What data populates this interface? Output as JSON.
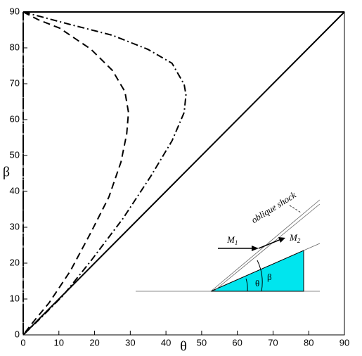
{
  "chart_data": {
    "type": "line",
    "x_label": "θ",
    "y_label": "β",
    "xlim": [
      0,
      90
    ],
    "ylim": [
      0,
      90
    ],
    "xticks": [
      0,
      10,
      20,
      30,
      40,
      50,
      60,
      70,
      80,
      90
    ],
    "yticks": [
      0,
      10,
      20,
      30,
      40,
      50,
      60,
      70,
      80,
      90
    ],
    "series": [
      {
        "color": "#000000",
        "dash": "solid",
        "x": [
          0,
          90,
          null,
          0,
          90
        ],
        "y": [
          0,
          90,
          null,
          90,
          90
        ]
      },
      {
        "color": "#000000",
        "dash": "dashed",
        "x": [
          0,
          4.3,
          10.2,
          19,
          25,
          28.5,
          29.5,
          29,
          27.4,
          24,
          19,
          13.2,
          7.3,
          2.4,
          0,
          0
        ],
        "y": [
          90,
          87.8,
          85.5,
          79.6,
          73.7,
          67.8,
          62,
          56,
          48.2,
          38.4,
          28.6,
          17.8,
          9,
          3.1,
          0,
          90
        ]
      },
      {
        "color": "#000000",
        "dash": "dashdot",
        "x": [
          0,
          13.2,
          25,
          34.9,
          41.7,
          45.1,
          45.6,
          45.1,
          41.7,
          35.8,
          28,
          19.1,
          11.2,
          4.3,
          0,
          0
        ],
        "y": [
          90,
          86.5,
          83.5,
          79.6,
          75.7,
          69.8,
          66.9,
          62,
          54.1,
          44.3,
          32.5,
          20.8,
          11,
          4.1,
          0,
          90
        ]
      }
    ],
    "annotations": {
      "shock": "oblique shock",
      "m1": "M",
      "m1_sub": "1",
      "m2": "M",
      "m2_sub": "2",
      "theta": "θ",
      "beta": "β"
    }
  }
}
